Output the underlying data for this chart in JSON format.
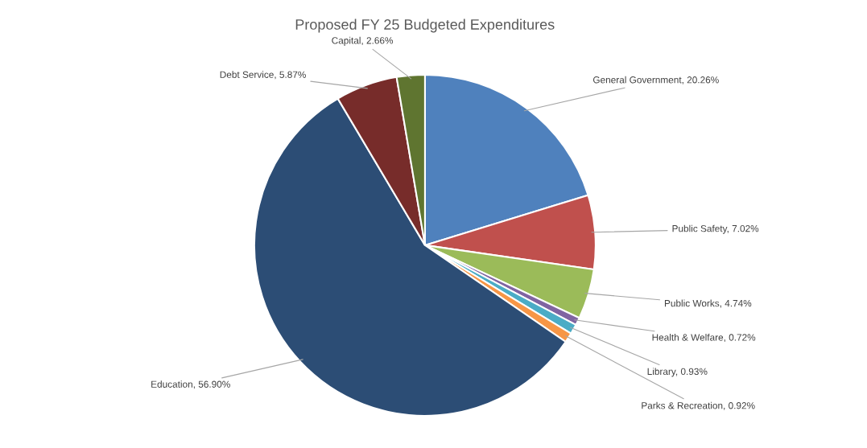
{
  "chart_data": {
    "type": "pie",
    "title": "Proposed FY 25 Budgeted Expenditures",
    "categories": [
      "General Government",
      "Public Safety",
      "Public Works",
      "Health & Welfare",
      "Library",
      "Parks & Recreation",
      "Education",
      "Debt Service",
      "Capital"
    ],
    "values": [
      20.26,
      7.02,
      4.74,
      0.72,
      0.93,
      0.92,
      56.9,
      5.87,
      2.66
    ],
    "value_labels": [
      "20.26%",
      "7.02%",
      "4.74%",
      "0.72%",
      "0.93%",
      "0.92%",
      "56.90%",
      "5.87%",
      "2.66%"
    ],
    "colors": [
      "#4f81bd",
      "#c0504d",
      "#9bbb59",
      "#8064a2",
      "#4bacc6",
      "#f79646",
      "#2c4d75",
      "#772c2a",
      "#5f7530"
    ],
    "legend": false
  }
}
